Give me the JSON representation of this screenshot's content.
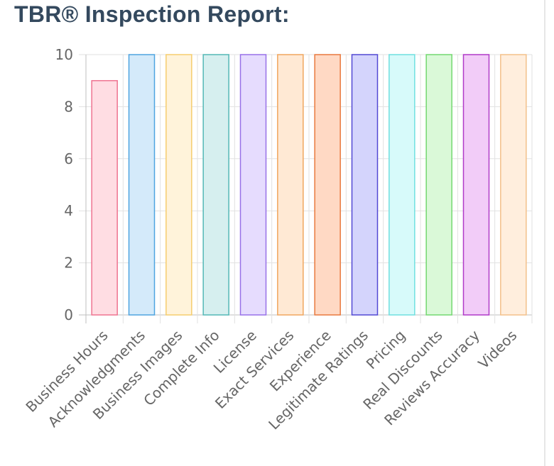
{
  "header": {
    "title": "TBR® Inspection Report:"
  },
  "chart_data": {
    "type": "bar",
    "title": "",
    "xlabel": "",
    "ylabel": "",
    "ylim": [
      0,
      10
    ],
    "yticks": [
      0,
      2,
      4,
      6,
      8,
      10
    ],
    "grid": true,
    "legend": "none",
    "categories": [
      "Business Hours",
      "Acknowledgments",
      "Business Images",
      "Complete Info",
      "License",
      "Exact Services",
      "Experience",
      "Legitimate Ratings",
      "Pricing",
      "Real Discounts",
      "Reviews Accuracy",
      "Videos"
    ],
    "values": [
      9,
      10,
      10,
      10,
      10,
      10,
      10,
      10,
      10,
      10,
      10,
      10
    ],
    "colors": [
      {
        "fill": "#ffdde3",
        "stroke": "#ef7390"
      },
      {
        "fill": "#d4eafa",
        "stroke": "#4ea4e0"
      },
      {
        "fill": "#fff3da",
        "stroke": "#f5cd6e"
      },
      {
        "fill": "#d6efef",
        "stroke": "#54b8b6"
      },
      {
        "fill": "#e6dcfe",
        "stroke": "#9770e8"
      },
      {
        "fill": "#ffe9d4",
        "stroke": "#f0a65e"
      },
      {
        "fill": "#ffd9c4",
        "stroke": "#e8793e"
      },
      {
        "fill": "#d4d4fc",
        "stroke": "#5248d4"
      },
      {
        "fill": "#d7fafa",
        "stroke": "#6fe0e0"
      },
      {
        "fill": "#daf9d8",
        "stroke": "#73d870"
      },
      {
        "fill": "#f2ccf8",
        "stroke": "#b03ac8"
      },
      {
        "fill": "#ffeedd",
        "stroke": "#f4c08a"
      }
    ]
  }
}
